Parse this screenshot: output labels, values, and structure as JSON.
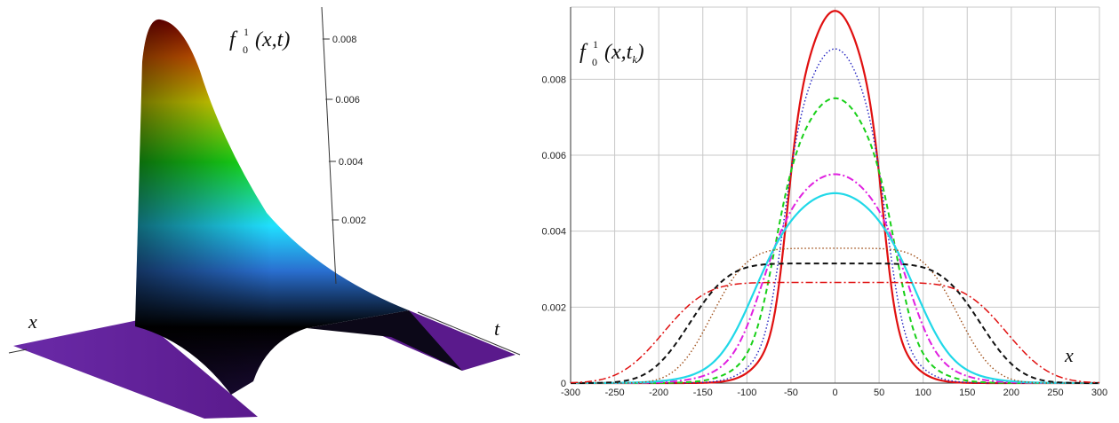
{
  "surface_plot": {
    "function_label": "f",
    "function_sup": "1",
    "function_sub": "0",
    "function_args": "(x,t)",
    "x_axis_label": "x",
    "t_axis_label": "t",
    "z_ticks": [
      "0.002",
      "0.004",
      "0.006",
      "0.008"
    ],
    "colormap": [
      "#5a1a8c",
      "#1a1040",
      "#000000",
      "#2a6fd0",
      "#20e0ff",
      "#19e619",
      "#f2f200",
      "#ff6a00",
      "#a00000"
    ]
  },
  "chart_data": {
    "type": "line",
    "title": "",
    "ylabel": "f_0^1(x,t_k)",
    "ylabel_parts": {
      "base": "f",
      "sup": "1",
      "sub": "0",
      "args_open": "(x,t",
      "args_sub": "k",
      "args_close": ")"
    },
    "xlabel": "x",
    "xlim": [
      -300,
      300
    ],
    "ylim": [
      0,
      0.0099
    ],
    "x_ticks": [
      "-300",
      "-250",
      "-200",
      "-150",
      "-100",
      "-50",
      "0",
      "50",
      "100",
      "150",
      "200",
      "250",
      "300"
    ],
    "y_ticks": [
      "0",
      "0.002",
      "0.004",
      "0.006",
      "0.008"
    ],
    "grid": true,
    "series": [
      {
        "peak": 0.0098,
        "half_width": 55,
        "edge": 16,
        "color": "#e01010",
        "dash": "",
        "width": 2.2
      },
      {
        "peak": 0.0088,
        "half_width": 60,
        "edge": 20,
        "color": "#2020c0",
        "dash": "1.5,2.5",
        "width": 1.4
      },
      {
        "peak": 0.0075,
        "half_width": 70,
        "edge": 24,
        "color": "#18d018",
        "dash": "6,4",
        "width": 2.0
      },
      {
        "peak": 0.0055,
        "half_width": 85,
        "edge": 32,
        "color": "#e020e0",
        "dash": "8,3,2,3",
        "width": 2.0
      },
      {
        "peak": 0.005,
        "half_width": 95,
        "edge": 40,
        "color": "#20d8e8",
        "dash": "",
        "width": 2.2
      },
      {
        "peak": 0.00355,
        "half_width": 140,
        "edge": 45,
        "color": "#a0501a",
        "dash": "1.5,2.5",
        "width": 1.4
      },
      {
        "peak": 0.00315,
        "half_width": 165,
        "edge": 50,
        "color": "#111111",
        "dash": "6,4",
        "width": 2.0
      },
      {
        "peak": 0.00265,
        "half_width": 195,
        "edge": 55,
        "color": "#e01010",
        "dash": "8,3,2,3",
        "width": 1.5
      }
    ]
  }
}
